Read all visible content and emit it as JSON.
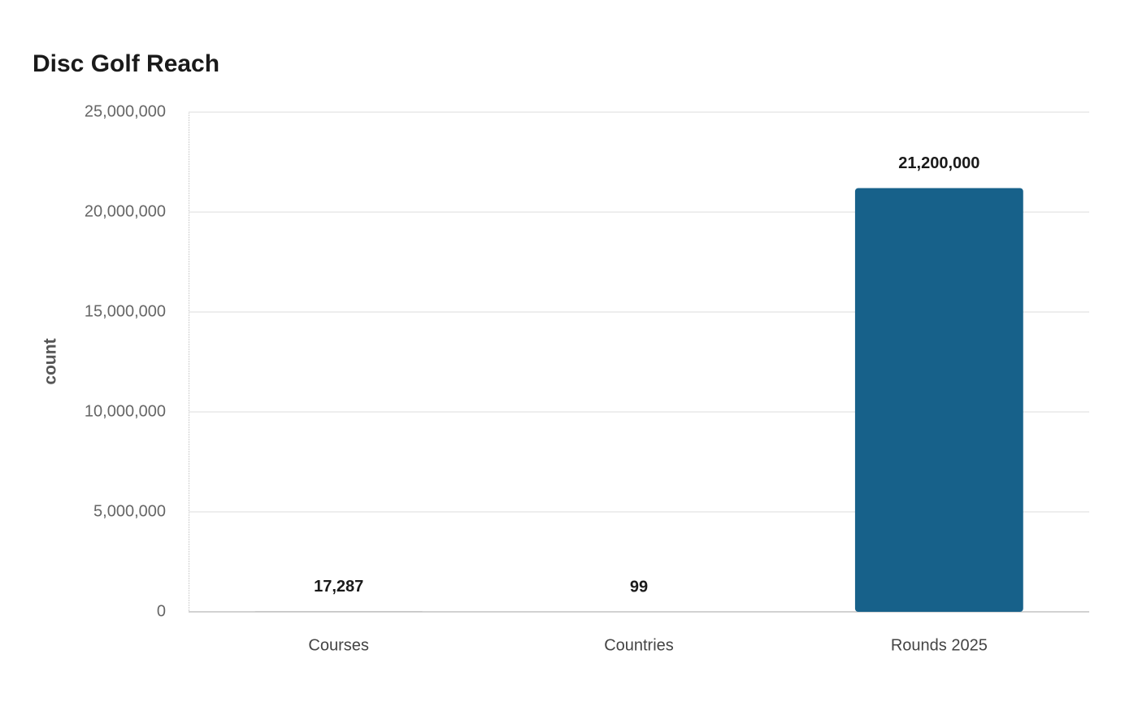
{
  "chart_data": {
    "type": "bar",
    "title": "Disc Golf Reach",
    "y_label": "count",
    "categories": [
      "Courses",
      "Countries",
      "Rounds 2025"
    ],
    "values": [
      17287,
      99,
      21200000
    ],
    "value_labels": [
      "17,287",
      "99",
      "21,200,000"
    ],
    "colors": [
      "#a9a9a9",
      "#8d9db3",
      "#17618a"
    ],
    "ylim": [
      0,
      25000000
    ],
    "yticks": [
      0,
      {
        "value": 5000000,
        "label": "5,000,000"
      },
      {
        "value": 10000000,
        "label": "10,000,000"
      },
      {
        "value": 15000000,
        "label": "15,000,000"
      },
      {
        "value": 20000000,
        "label": "20,000,000"
      },
      {
        "value": 25000000,
        "label": "25,000,000"
      }
    ],
    "grid": true
  }
}
